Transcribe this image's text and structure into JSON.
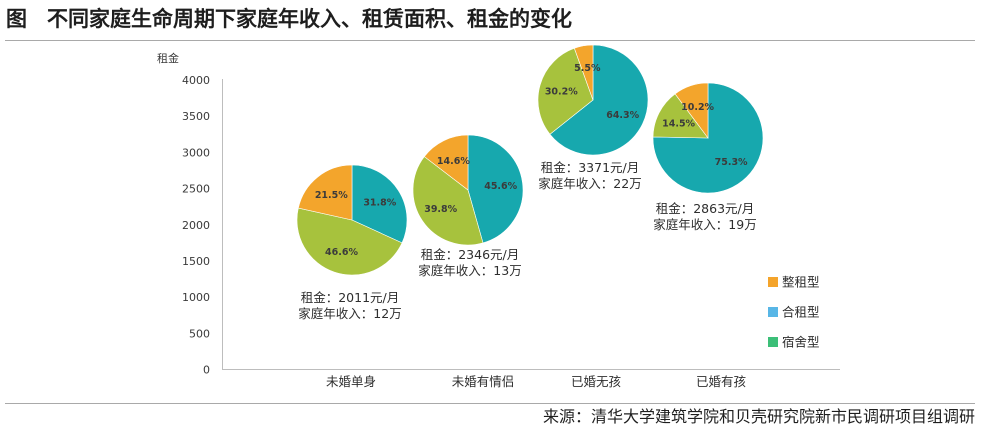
{
  "figure_label": "图",
  "source": "来源：清华大学建筑学院和贝壳研究院新市民调研项目组调研",
  "chart_data": {
    "type": "pie",
    "title": "不同家庭生命周期下家庭年收入、租赁面积、租金的变化",
    "ylabel": "租金",
    "ylim": [
      0,
      4000
    ],
    "yticks": [
      0,
      500,
      1000,
      1500,
      2000,
      2500,
      3000,
      3500,
      4000
    ],
    "categories": [
      "未婚单身",
      "未婚有情侣",
      "已婚无孩",
      "已婚有孩"
    ],
    "series": [
      {
        "name": "整租型",
        "legend_color": "#F4A42B",
        "pie_color": "#F3A52C",
        "values": [
          21.5,
          14.6,
          5.5,
          10.2
        ],
        "labels": [
          "21.5%",
          "14.6%",
          "5.5%",
          "10.2%"
        ]
      },
      {
        "name": "合租型",
        "legend_color": "#58B6E6",
        "pie_color": "#17A8AE",
        "values": [
          31.8,
          45.6,
          64.3,
          75.3
        ],
        "labels": [
          "31.8%",
          "45.6%",
          "64.3%",
          "75.3%"
        ]
      },
      {
        "name": "宿舍型",
        "legend_color": "#3CBF78",
        "pie_color": "#A7C23D",
        "values": [
          46.6,
          39.8,
          30.2,
          14.5
        ],
        "labels": [
          "46.6%",
          "39.8%",
          "30.2%",
          "14.5%"
        ]
      }
    ],
    "rent": [
      2011,
      2346,
      3371,
      2863
    ],
    "income": [
      12,
      13,
      22,
      19
    ],
    "rent_prefix": "租金：",
    "rent_unit": "元/月",
    "income_prefix": "家庭年收入：",
    "income_unit": "万"
  }
}
